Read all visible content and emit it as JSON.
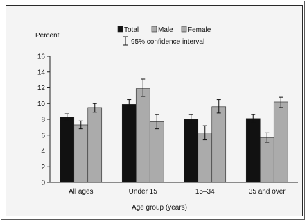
{
  "chart_data": {
    "type": "bar",
    "ylabel": "Percent",
    "xlabel": "Age group (years)",
    "ylim": [
      0,
      16
    ],
    "yticks": [
      0,
      2,
      4,
      6,
      8,
      10,
      12,
      14,
      16
    ],
    "categories": [
      "All ages",
      "Under 15",
      "15–34",
      "35 and over"
    ],
    "series": [
      {
        "name": "Total",
        "color": "#111111",
        "values": [
          8.3,
          9.9,
          8.0,
          8.1
        ],
        "ci_low": [
          7.9,
          9.3,
          7.4,
          7.6
        ],
        "ci_high": [
          8.7,
          10.5,
          8.6,
          8.6
        ]
      },
      {
        "name": "Male",
        "color": "#ababab",
        "values": [
          7.3,
          11.9,
          6.3,
          5.7
        ],
        "ci_low": [
          6.8,
          10.9,
          5.4,
          5.1
        ],
        "ci_high": [
          7.8,
          13.1,
          7.2,
          6.3
        ]
      },
      {
        "name": "Female",
        "color": "#ababab",
        "values": [
          9.5,
          7.7,
          9.6,
          10.2
        ],
        "ci_low": [
          8.9,
          6.8,
          8.8,
          9.5
        ],
        "ci_high": [
          10.0,
          8.6,
          10.5,
          10.8
        ]
      }
    ],
    "legend": {
      "ci_label": "95% confidence interval",
      "placement": "top"
    },
    "grid": false
  }
}
